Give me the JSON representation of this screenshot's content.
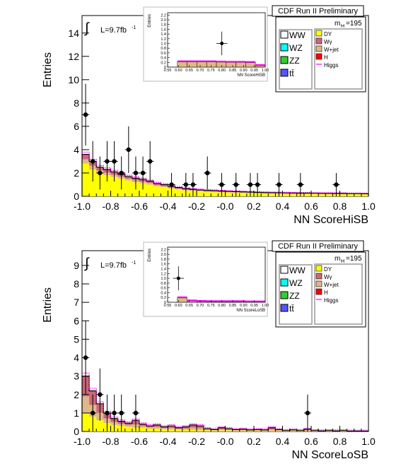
{
  "chart_data": [
    {
      "type": "histogram",
      "title": "CDF Run II Preliminary",
      "xlabel": "NN ScoreHiSB",
      "ylabel": "Entries",
      "xlim": [
        -1.0,
        1.0
      ],
      "ylim": [
        0,
        15.5
      ],
      "xticks": [
        "-1.0",
        "-0.8",
        "-0.6",
        "-0.4",
        "-0.2",
        "-0.0",
        "0.2",
        "0.4",
        "0.6",
        "0.8",
        "1.0"
      ],
      "yticks": [
        "0",
        "2",
        "4",
        "6",
        "8",
        "10",
        "12",
        "14"
      ],
      "lumi_text": "L=9.7fb",
      "lumi_sup": "-1",
      "mass_label": "m",
      "mass_sub": "H",
      "mass_value": "=195",
      "legend_left": [
        "WW",
        "WZ",
        "ZZ",
        "tt̄"
      ],
      "legend_right": [
        "DY",
        "Wγ",
        "W+jet",
        "H",
        "Higgs"
      ],
      "background_total": [
        3.6,
        3.0,
        2.5,
        2.3,
        2.1,
        1.9,
        1.7,
        1.55,
        1.45,
        1.3,
        1.1,
        1.0,
        0.85,
        0.75,
        0.65,
        0.6,
        0.55,
        0.5,
        0.48,
        0.45,
        0.42,
        0.4,
        0.38,
        0.36,
        0.34,
        0.32,
        0.31,
        0.3,
        0.29,
        0.28,
        0.27,
        0.27,
        0.26,
        0.25,
        0.25,
        0.24,
        0.24,
        0.23,
        0.23,
        0.22
      ],
      "dy_component": [
        2.8,
        2.3,
        1.95,
        1.8,
        1.65,
        1.5,
        1.35,
        1.2,
        1.12,
        1.0,
        0.85,
        0.78,
        0.66,
        0.58,
        0.5,
        0.46,
        0.43,
        0.39,
        0.37,
        0.35,
        0.33,
        0.31,
        0.29,
        0.28,
        0.27,
        0.25,
        0.24,
        0.23,
        0.22,
        0.22,
        0.21,
        0.21,
        0.2,
        0.2,
        0.19,
        0.19,
        0.18,
        0.18,
        0.18,
        0.17
      ],
      "data_points": [
        {
          "x": -0.975,
          "y": 7
        },
        {
          "x": -0.925,
          "y": 3
        },
        {
          "x": -0.875,
          "y": 2
        },
        {
          "x": -0.825,
          "y": 3
        },
        {
          "x": -0.775,
          "y": 3
        },
        {
          "x": -0.725,
          "y": 2
        },
        {
          "x": -0.675,
          "y": 4
        },
        {
          "x": -0.625,
          "y": 2
        },
        {
          "x": -0.575,
          "y": 2
        },
        {
          "x": -0.525,
          "y": 3
        },
        {
          "x": -0.375,
          "y": 1
        },
        {
          "x": -0.275,
          "y": 1
        },
        {
          "x": -0.225,
          "y": 1
        },
        {
          "x": -0.125,
          "y": 2
        },
        {
          "x": -0.025,
          "y": 1
        },
        {
          "x": 0.075,
          "y": 1
        },
        {
          "x": 0.175,
          "y": 1
        },
        {
          "x": 0.225,
          "y": 1
        },
        {
          "x": 0.375,
          "y": 1
        },
        {
          "x": 0.525,
          "y": 1
        },
        {
          "x": 0.775,
          "y": 1
        }
      ],
      "inset": {
        "xlabel": "NN ScoreHiSB",
        "ylabel": "Entries",
        "xlim": [
          0.55,
          1.0
        ],
        "ylim": [
          0,
          2.3
        ],
        "xticks": [
          "0.55",
          "0.60",
          "0.65",
          "0.70",
          "0.75",
          "0.80",
          "0.85",
          "0.90",
          "0.95",
          "1.00"
        ],
        "yticks": [
          "0",
          "0.2",
          "0.4",
          "0.6",
          "0.8",
          "1.0",
          "1.2",
          "1.4",
          "1.6",
          "1.8",
          "2.0",
          "2.2"
        ],
        "background_total": [
          0.0,
          0.22,
          0.22,
          0.22,
          0.22,
          0.21,
          0.2,
          0.2,
          0.19,
          0.06
        ],
        "data_points": [
          {
            "x": 0.8,
            "y": 1.0
          }
        ]
      }
    },
    {
      "type": "histogram",
      "title": "CDF Run II Preliminary",
      "xlabel": "NN ScoreLoSB",
      "ylabel": "Entries",
      "xlim": [
        -1.0,
        1.0
      ],
      "ylim": [
        0,
        9.8
      ],
      "xticks": [
        "-1.0",
        "-0.8",
        "-0.6",
        "-0.4",
        "-0.2",
        "-0.0",
        "0.2",
        "0.4",
        "0.6",
        "0.8",
        "1.0"
      ],
      "yticks": [
        "0",
        "1",
        "2",
        "3",
        "4",
        "5",
        "6",
        "7",
        "8",
        "9"
      ],
      "lumi_text": "L=9.7fb",
      "lumi_sup": "-1",
      "mass_label": "m",
      "mass_sub": "H",
      "mass_value": "=195",
      "legend_left": [
        "WW",
        "WZ",
        "ZZ",
        "tt̄"
      ],
      "legend_right": [
        "DY",
        "Wγ",
        "W+jet",
        "H",
        "Higgs"
      ],
      "background_total": [
        3.0,
        2.2,
        1.5,
        1.0,
        0.7,
        0.55,
        0.45,
        0.6,
        0.4,
        0.3,
        0.35,
        0.25,
        0.3,
        0.2,
        0.25,
        0.35,
        0.3,
        0.15,
        0.1,
        0.2,
        0.15,
        0.1,
        0.12,
        0.08,
        0.1,
        0.08,
        0.2,
        0.1,
        0.05,
        0.08,
        0.05,
        0.12,
        0.05,
        0.03,
        0.05,
        0.03,
        0.05,
        0.02,
        0.02,
        0.02
      ],
      "dy_component": [
        1.0,
        0.8,
        0.6,
        0.45,
        0.35,
        0.3,
        0.25,
        0.2,
        0.2,
        0.15,
        0.15,
        0.12,
        0.1,
        0.1,
        0.08,
        0.08,
        0.06,
        0.06,
        0.05,
        0.05,
        0.05,
        0.04,
        0.04,
        0.04,
        0.04,
        0.03,
        0.03,
        0.03,
        0.03,
        0.03,
        0.02,
        0.02,
        0.02,
        0.02,
        0.02,
        0.02,
        0.02,
        0.01,
        0.01,
        0.01
      ],
      "data_points": [
        {
          "x": -0.975,
          "y": 4
        },
        {
          "x": -0.925,
          "y": 1
        },
        {
          "x": -0.875,
          "y": 2
        },
        {
          "x": -0.825,
          "y": 1
        },
        {
          "x": -0.775,
          "y": 1
        },
        {
          "x": -0.725,
          "y": 1
        },
        {
          "x": -0.625,
          "y": 1
        },
        {
          "x": 0.575,
          "y": 1
        }
      ],
      "inset": {
        "xlabel": "NN ScoreLoSB",
        "ylabel": "Entries",
        "xlim": [
          0.55,
          1.0
        ],
        "ylim": [
          0,
          2.3
        ],
        "xticks": [
          "0.55",
          "0.60",
          "0.65",
          "0.70",
          "0.75",
          "0.80",
          "0.85",
          "0.90",
          "0.95",
          "1.00"
        ],
        "yticks": [
          "0",
          "0.2",
          "0.4",
          "0.6",
          "0.8",
          "1.0",
          "1.2",
          "1.4",
          "1.6",
          "1.8",
          "2.0",
          "2.2"
        ],
        "background_total": [
          0.0,
          0.18,
          0.05,
          0.03,
          0.02,
          0.02,
          0.02,
          0.02,
          0.01,
          0.01
        ],
        "data_points": [
          {
            "x": 0.6,
            "y": 1.0
          }
        ]
      }
    }
  ],
  "colors": {
    "dy": "#ffff00",
    "wgamma": "#cc6677",
    "wjet": "#deb887",
    "h": "#ff0000",
    "higgs": "#ff00ff",
    "ww": "#ffffff",
    "wz": "#00ffff",
    "zz": "#33cc33",
    "tt": "#5555ff"
  }
}
